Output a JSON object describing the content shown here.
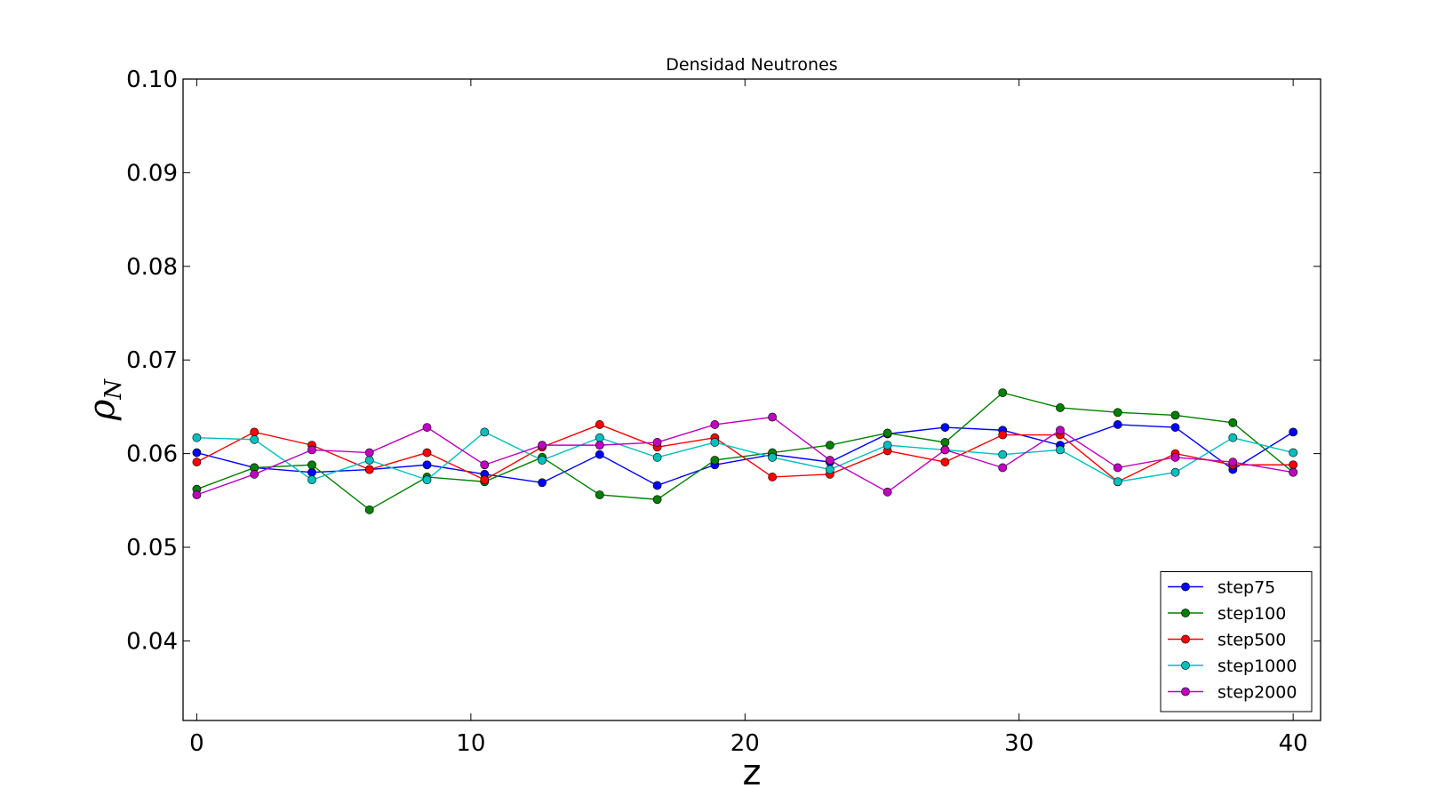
{
  "chart_data": {
    "type": "line",
    "title": "Densidad Neutrones",
    "xlabel": "z",
    "ylabel_main": "ρ",
    "ylabel_sub": "N",
    "xlim": [
      -0.5,
      41
    ],
    "ylim": [
      0.0315,
      0.1
    ],
    "xticks": [
      0,
      10,
      20,
      30,
      40
    ],
    "xtick_labels": [
      "0",
      "10",
      "20",
      "30",
      "40"
    ],
    "yticks": [
      0.04,
      0.05,
      0.06,
      0.07,
      0.08,
      0.09,
      0.1
    ],
    "ytick_labels": [
      "0.04",
      "0.05",
      "0.06",
      "0.07",
      "0.08",
      "0.09",
      "0.10"
    ],
    "grid": false,
    "legend_position": "lower-right",
    "x": [
      0,
      2.1,
      4.2,
      6.3,
      8.4,
      10.5,
      12.6,
      14.7,
      16.8,
      18.9,
      21.0,
      23.1,
      25.2,
      27.3,
      29.4,
      31.5,
      33.6,
      35.7,
      37.8,
      40.0
    ],
    "series": [
      {
        "name": "step75",
        "color": "#0000ff",
        "values": [
          0.0601,
          0.0585,
          0.058,
          0.0583,
          0.0588,
          0.0578,
          0.0569,
          0.0599,
          0.0566,
          0.0588,
          0.0599,
          0.0591,
          0.0621,
          0.0628,
          0.0625,
          0.0609,
          0.0631,
          0.0628,
          0.0583,
          0.0623
        ]
      },
      {
        "name": "step100",
        "color": "#008000",
        "values": [
          0.0562,
          0.0585,
          0.0588,
          0.054,
          0.0575,
          0.057,
          0.0596,
          0.0556,
          0.0551,
          0.0593,
          0.0601,
          0.0609,
          0.0622,
          0.0612,
          0.0665,
          0.0649,
          0.0644,
          0.0641,
          0.0633,
          0.058
        ]
      },
      {
        "name": "step500",
        "color": "#ff0000",
        "values": [
          0.0591,
          0.0623,
          0.0609,
          0.0583,
          0.0601,
          0.0572,
          0.0607,
          0.0631,
          0.0607,
          0.0617,
          0.0575,
          0.0578,
          0.0603,
          0.0591,
          0.062,
          0.062,
          0.057,
          0.06,
          0.0588,
          0.0588
        ]
      },
      {
        "name": "step1000",
        "color": "#00bfbf",
        "values": [
          0.0617,
          0.0615,
          0.0572,
          0.0593,
          0.0572,
          0.0623,
          0.0593,
          0.0617,
          0.0596,
          0.0612,
          0.0596,
          0.0583,
          0.0609,
          0.0604,
          0.0599,
          0.0604,
          0.057,
          0.058,
          0.0617,
          0.0601
        ]
      },
      {
        "name": "step2000",
        "color": "#bf00bf",
        "values": [
          0.0556,
          0.0578,
          0.0604,
          0.0601,
          0.0628,
          0.0588,
          0.0609,
          0.0609,
          0.0612,
          0.0631,
          0.0639,
          0.0593,
          0.0559,
          0.0604,
          0.0585,
          0.0625,
          0.0585,
          0.0596,
          0.0591,
          0.058
        ]
      }
    ]
  }
}
